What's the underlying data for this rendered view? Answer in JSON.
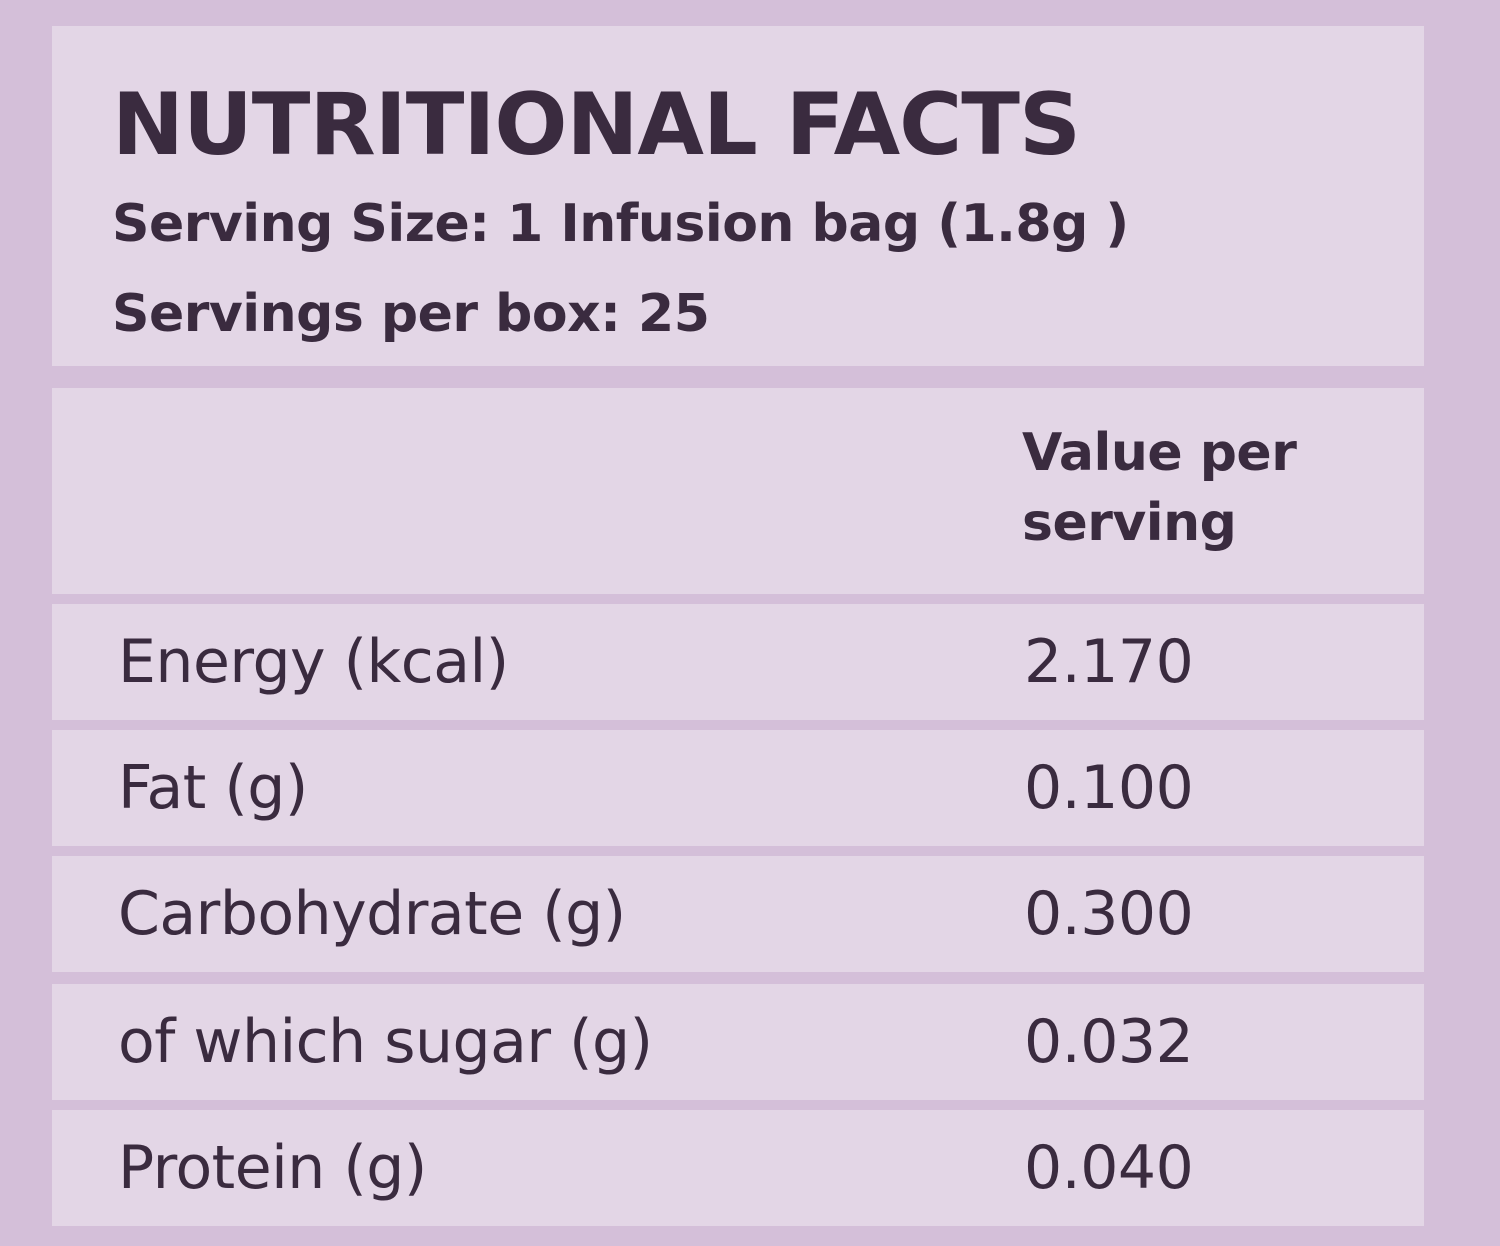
{
  "header": {
    "title": "NUTRITIONAL FACTS",
    "serving_size": "Serving Size: 1 Infusion bag (1.8g )",
    "servings_per_box": "Servings per box: 25"
  },
  "table": {
    "column_header": "Value per serving",
    "rows": [
      {
        "name": "Energy (kcal)",
        "value": "2.170"
      },
      {
        "name": "Fat (g)",
        "value": "0.100"
      },
      {
        "name": "Carbohydrate (g)",
        "value": "0.300"
      },
      {
        "name": "of which sugar (g)",
        "value": "0.032"
      },
      {
        "name": "Protein (g)",
        "value": "0.040"
      }
    ]
  },
  "colors": {
    "background": "#d4bfd9",
    "panel": "#e3d6e6",
    "text": "#3a2b3f"
  }
}
